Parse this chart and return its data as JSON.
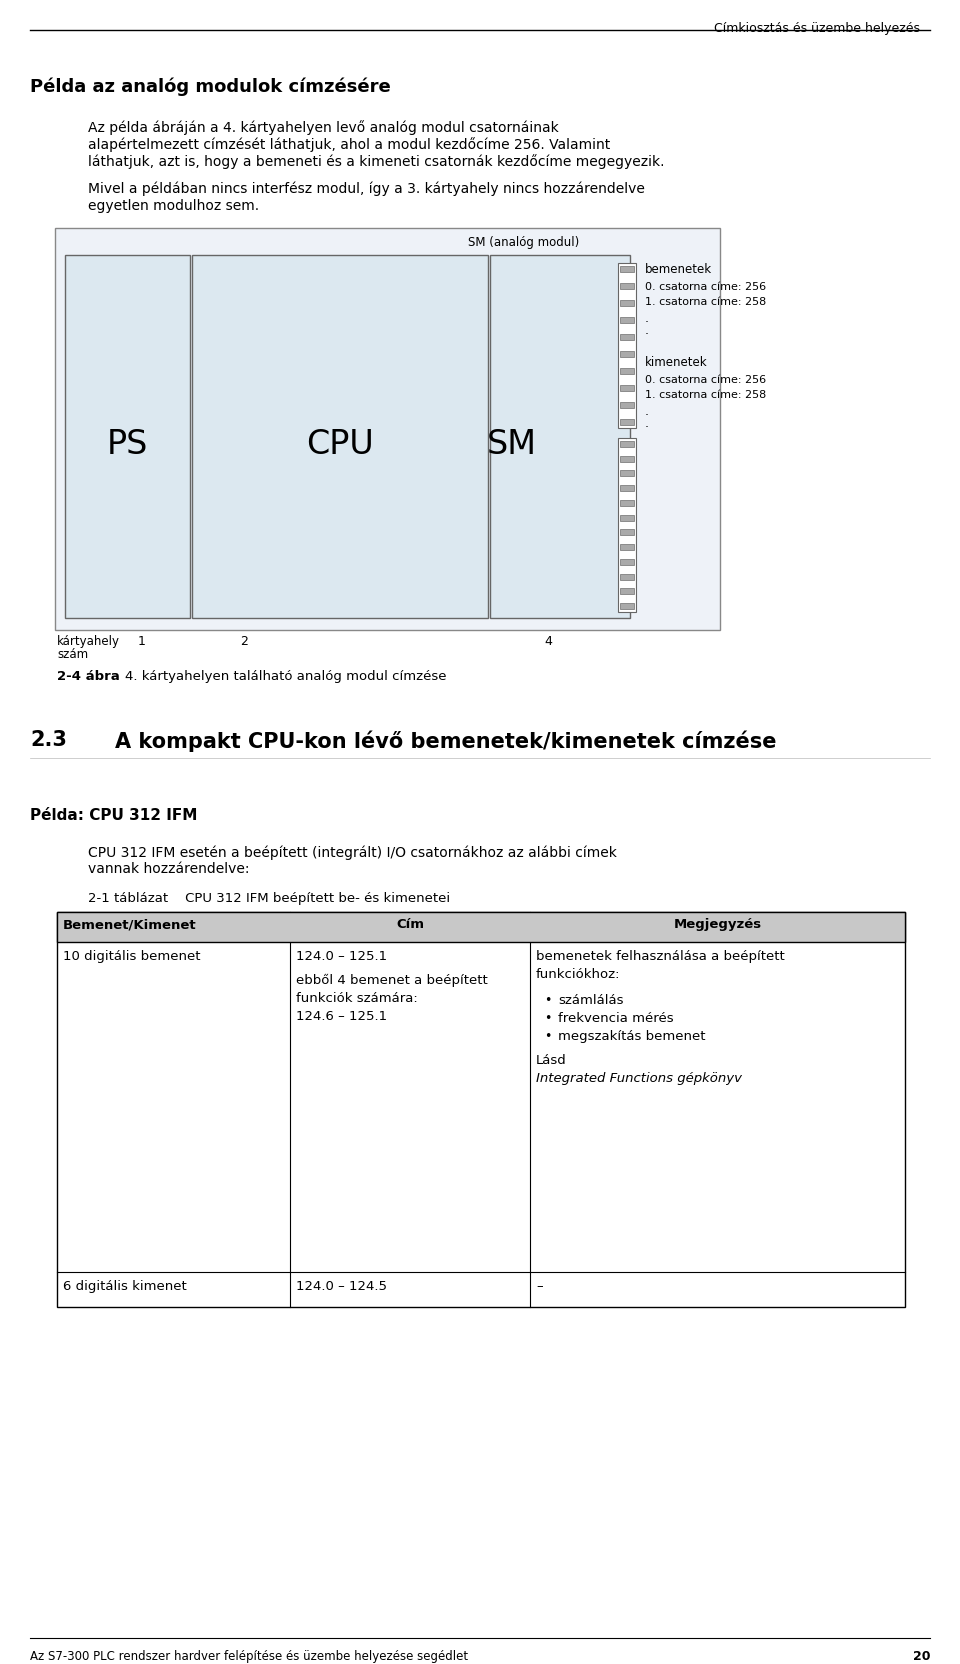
{
  "page_title": "Címkiosztás és üzembe helyezés",
  "page_number": "20",
  "footer_text": "Az S7-300 PLC rendszer hardver felépítése és üzembe helyezése segédlet",
  "section_heading": "Példa az analóg modulok címzésére",
  "para1a": "Az példa ábráján a 4. kártyahelyen levő analóg modul csatornáinak",
  "para1b": "alapértelmezett címzését láthatjuk, ahol a modul kezdőcíme 256. Valamint",
  "para1c": "láthatjuk, azt is, hogy a bemeneti és a kimeneti csatornák kezdőcíme megegyezik.",
  "para2a": "Mivel a példában nincs interfész modul, így a 3. kártyahely nincs hozzárendelve",
  "para2b": "egyetlen modulhoz sem.",
  "diagram_label_top": "SM (analóg modul)",
  "diagram_ps": "PS",
  "diagram_cpu": "CPU",
  "diagram_sm": "SM",
  "diagram_bemenetek": "bemenetek",
  "diagram_kimenetek": "kimenetek",
  "diagram_ch0_be": "0. csatorna címe: 256",
  "diagram_ch1_be": "1. csatorna címe: 258",
  "diagram_dot1": ".",
  "diagram_dot2": ".",
  "diagram_ch0_ki": "0. csatorna címe: 256",
  "diagram_ch1_ki": "1. csatorna címe: 258",
  "diagram_dot3": ".",
  "diagram_dot4": ".",
  "diagram_kartya_label1": "kártyahely",
  "diagram_kartya_label2": "szám",
  "diagram_num1": "1",
  "diagram_num2": "2",
  "diagram_num4": "4",
  "figure_label": "2-4 ábra",
  "figure_caption": "4. kártyahelyen található analóg modul címzése",
  "section2_num": "2.3",
  "section2_title": "A kompakt CPU-kon lévő bemenetek/kimenetek címzése",
  "example2_heading": "Példa: CPU 312 IFM",
  "example2_para1": "CPU 312 IFM esetén a beépített (integrált) I/O csatornákhoz az alábbi címek",
  "example2_para2": "vannak hozzárendelve:",
  "table_label": "2-1 táblázat",
  "table_caption": "CPU 312 IFM beépített be- és kimenetei",
  "table_col1": "Bemenet/Kimenet",
  "table_col2": "Cím",
  "table_col3": "Megjegyzés",
  "table_row1_c1": "10 digitális bemenet",
  "table_row1_c2a": "124.0 – 125.1",
  "table_row1_c2b": "ebből 4 bemenet a beépített",
  "table_row1_c2c": "funkciók számára:",
  "table_row1_c2d": "124.6 – 125.1",
  "table_row1_c3a": "bemenetek felhasználása a beépített",
  "table_row1_c3b": "funkciókhoz:",
  "table_row1_c3c": "számlálás",
  "table_row1_c3d": "frekvencia mérés",
  "table_row1_c3e": "megszakítás bemenet",
  "table_row1_c3f": "Lásd",
  "table_row1_c3g": "Integrated Functions gépkönyv",
  "table_row2_c1": "6 digitális kimenet",
  "table_row2_c2": "124.0 – 124.5",
  "table_row2_c3": "–",
  "bg_color": "#ffffff",
  "diagram_bg": "#eef2f8",
  "module_bg": "#dce8f0",
  "connector_bg": "#ffffff",
  "table_header_bg": "#c8c8c8"
}
